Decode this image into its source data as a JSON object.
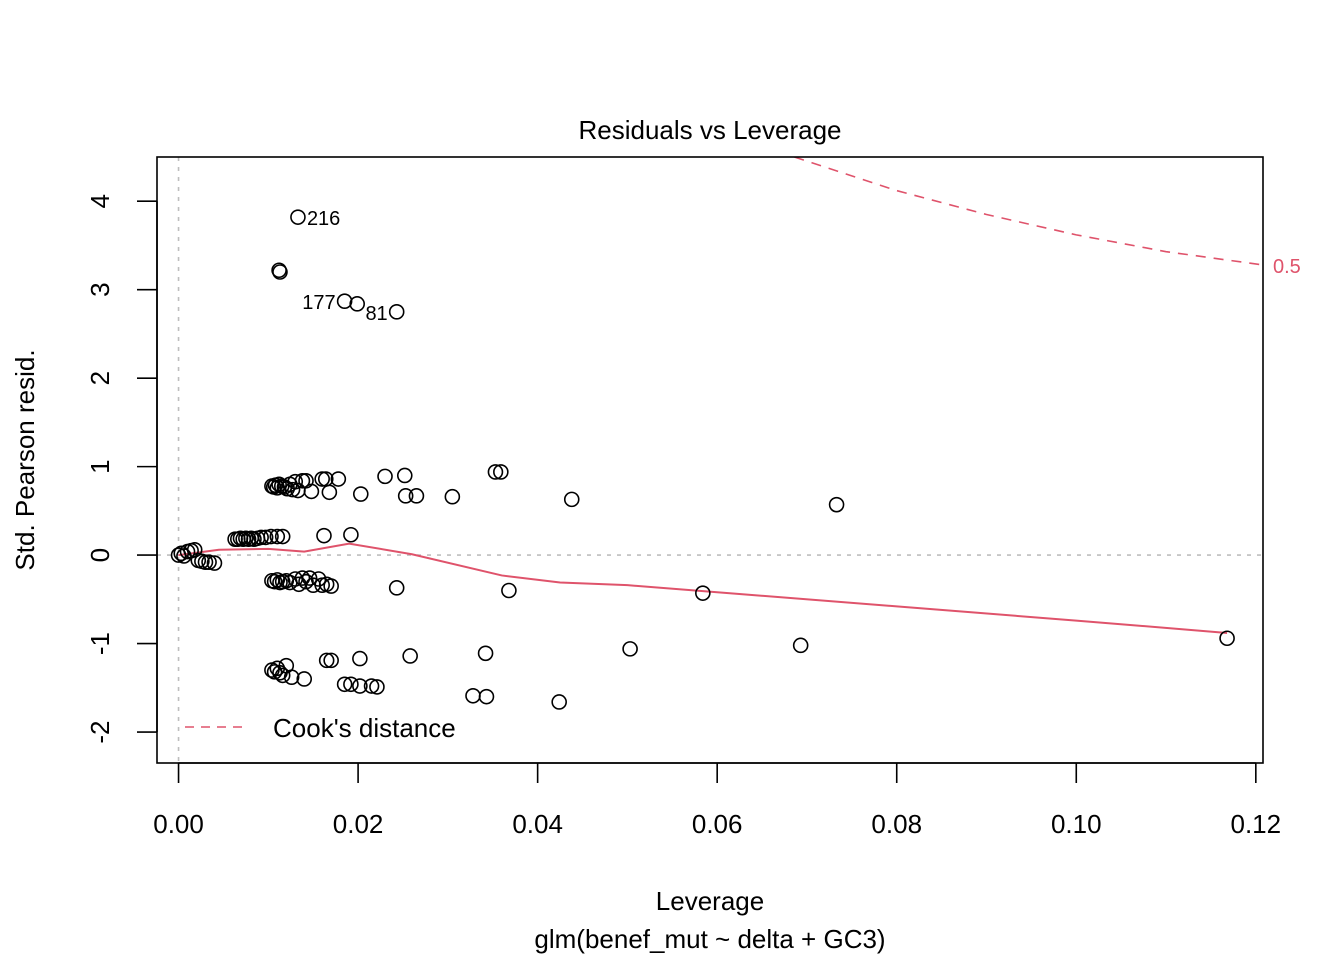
{
  "chart_data": {
    "type": "scatter",
    "title": "Residuals vs Leverage",
    "xlabel": "Leverage",
    "subtitle": "glm(benef_mut ~ delta + GC3)",
    "ylabel": "Std. Pearson resid.",
    "xlim": [
      -0.0024,
      0.1208
    ],
    "ylim": [
      -2.35,
      4.5
    ],
    "x_ticks": [
      0.0,
      0.02,
      0.04,
      0.06,
      0.08,
      0.1,
      0.12
    ],
    "x_tick_labels": [
      "0.00",
      "0.02",
      "0.04",
      "0.06",
      "0.08",
      "0.10",
      "0.12"
    ],
    "y_ticks": [
      -2,
      -1,
      0,
      1,
      2,
      3,
      4
    ],
    "y_tick_labels": [
      "-2",
      "-1",
      "0",
      "1",
      "2",
      "3",
      "4"
    ],
    "reference_lines": {
      "h": 0,
      "v": 0,
      "style": "dotted",
      "color": "#BEBEBE"
    },
    "colors": {
      "points": "#000000",
      "smooth": "#DF536B",
      "cooks": "#DF536B"
    },
    "legend": {
      "position": "bottom-left",
      "entries": [
        {
          "label": "Cook's distance",
          "style": "dashed",
          "color": "#DF536B"
        }
      ]
    },
    "cooks_contour": {
      "level": 0.5,
      "label": "0.5"
    },
    "labeled_points": [
      {
        "label": "216",
        "x": 0.0133,
        "y": 3.82
      },
      {
        "label": "177",
        "x": 0.0185,
        "y": 2.87
      },
      {
        "label": "81",
        "x": 0.0243,
        "y": 2.75
      }
    ],
    "points": [
      [
        0.0133,
        3.82
      ],
      [
        0.0112,
        3.22
      ],
      [
        0.0113,
        3.2
      ],
      [
        0.0185,
        2.87
      ],
      [
        0.0199,
        2.84
      ],
      [
        0.0243,
        2.75
      ],
      [
        0.0104,
        0.78
      ],
      [
        0.0106,
        0.77
      ],
      [
        0.0108,
        0.79
      ],
      [
        0.011,
        0.76
      ],
      [
        0.0112,
        0.8
      ],
      [
        0.0115,
        0.78
      ],
      [
        0.0118,
        0.77
      ],
      [
        0.0121,
        0.75
      ],
      [
        0.0124,
        0.8
      ],
      [
        0.0127,
        0.74
      ],
      [
        0.013,
        0.83
      ],
      [
        0.0133,
        0.73
      ],
      [
        0.0138,
        0.84
      ],
      [
        0.0142,
        0.84
      ],
      [
        0.0148,
        0.72
      ],
      [
        0.016,
        0.86
      ],
      [
        0.0164,
        0.86
      ],
      [
        0.0168,
        0.71
      ],
      [
        0.0178,
        0.86
      ],
      [
        0.0203,
        0.69
      ],
      [
        0.023,
        0.89
      ],
      [
        0.0252,
        0.9
      ],
      [
        0.0253,
        0.67
      ],
      [
        0.0265,
        0.67
      ],
      [
        0.0305,
        0.66
      ],
      [
        0.0353,
        0.94
      ],
      [
        0.0359,
        0.94
      ],
      [
        0.0438,
        0.63
      ],
      [
        0.0733,
        0.57
      ],
      [
        0.0063,
        0.18
      ],
      [
        0.0066,
        0.18
      ],
      [
        0.0069,
        0.19
      ],
      [
        0.0072,
        0.18
      ],
      [
        0.0075,
        0.19
      ],
      [
        0.0078,
        0.18
      ],
      [
        0.0081,
        0.19
      ],
      [
        0.0084,
        0.18
      ],
      [
        0.0088,
        0.19
      ],
      [
        0.0092,
        0.2
      ],
      [
        0.0097,
        0.2
      ],
      [
        0.0103,
        0.21
      ],
      [
        0.011,
        0.21
      ],
      [
        0.0116,
        0.21
      ],
      [
        0.0162,
        0.22
      ],
      [
        0.0192,
        0.23
      ],
      [
        0.0,
        0.0
      ],
      [
        0.0003,
        0.02
      ],
      [
        0.0006,
        -0.01
      ],
      [
        0.001,
        0.04
      ],
      [
        0.0014,
        0.05
      ],
      [
        0.0018,
        0.06
      ],
      [
        0.0022,
        -0.06
      ],
      [
        0.0026,
        -0.07
      ],
      [
        0.003,
        -0.08
      ],
      [
        0.0034,
        -0.08
      ],
      [
        0.004,
        -0.09
      ],
      [
        0.0104,
        -0.29
      ],
      [
        0.0107,
        -0.3
      ],
      [
        0.011,
        -0.28
      ],
      [
        0.0113,
        -0.31
      ],
      [
        0.0116,
        -0.3
      ],
      [
        0.012,
        -0.29
      ],
      [
        0.0124,
        -0.31
      ],
      [
        0.013,
        -0.27
      ],
      [
        0.0134,
        -0.33
      ],
      [
        0.0138,
        -0.26
      ],
      [
        0.0142,
        -0.3
      ],
      [
        0.0146,
        -0.26
      ],
      [
        0.015,
        -0.34
      ],
      [
        0.0156,
        -0.27
      ],
      [
        0.016,
        -0.34
      ],
      [
        0.0165,
        -0.33
      ],
      [
        0.017,
        -0.35
      ],
      [
        0.0243,
        -0.37
      ],
      [
        0.0368,
        -0.4
      ],
      [
        0.0584,
        -0.43
      ],
      [
        0.0104,
        -1.3
      ],
      [
        0.0107,
        -1.32
      ],
      [
        0.011,
        -1.28
      ],
      [
        0.0113,
        -1.33
      ],
      [
        0.0116,
        -1.36
      ],
      [
        0.012,
        -1.25
      ],
      [
        0.0126,
        -1.38
      ],
      [
        0.014,
        -1.4
      ],
      [
        0.0165,
        -1.19
      ],
      [
        0.017,
        -1.19
      ],
      [
        0.0202,
        -1.17
      ],
      [
        0.0185,
        -1.46
      ],
      [
        0.0192,
        -1.46
      ],
      [
        0.0202,
        -1.48
      ],
      [
        0.0215,
        -1.48
      ],
      [
        0.0221,
        -1.49
      ],
      [
        0.0258,
        -1.14
      ],
      [
        0.0328,
        -1.59
      ],
      [
        0.0343,
        -1.6
      ],
      [
        0.0342,
        -1.11
      ],
      [
        0.0424,
        -1.66
      ],
      [
        0.0503,
        -1.06
      ],
      [
        0.0693,
        -1.02
      ],
      [
        0.1168,
        -0.94
      ]
    ],
    "smooth_line": [
      [
        0.0,
        0.0
      ],
      [
        0.0045,
        0.06
      ],
      [
        0.01,
        0.07
      ],
      [
        0.014,
        0.04
      ],
      [
        0.019,
        0.13
      ],
      [
        0.026,
        0.01
      ],
      [
        0.036,
        -0.23
      ],
      [
        0.0425,
        -0.31
      ],
      [
        0.05,
        -0.34
      ],
      [
        0.06,
        -0.42
      ],
      [
        0.08,
        -0.58
      ],
      [
        0.1,
        -0.74
      ],
      [
        0.1168,
        -0.88
      ]
    ],
    "cooks_line": [
      [
        0.0686,
        4.5
      ],
      [
        0.08,
        4.12
      ],
      [
        0.09,
        3.85
      ],
      [
        0.1,
        3.62
      ],
      [
        0.11,
        3.43
      ],
      [
        0.1208,
        3.28
      ]
    ]
  }
}
